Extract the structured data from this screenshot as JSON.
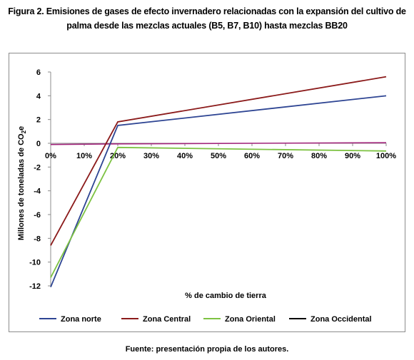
{
  "figure": {
    "title_line1": "Figura 2. Emisiones de gases de efecto invernadero relacionadas con la expansión del cultivo de",
    "title_line2": "palma desde las mezclas actuales (B5, B7, B10) hasta mezclas BB20",
    "source": "Fuente: presentación propia de los autores."
  },
  "chart_data": {
    "type": "line",
    "xlabel": "% de cambio de tierra",
    "ylabel_main": "Millones de toneladas de CO",
    "ylabel_sub": "2",
    "ylabel_tail": "e",
    "x": [
      0,
      20,
      100
    ],
    "x_ticks": [
      "0%",
      "10%",
      "20%",
      "30%",
      "40%",
      "50%",
      "60%",
      "70%",
      "80%",
      "90%",
      "100%"
    ],
    "x_tick_values": [
      0,
      10,
      20,
      30,
      40,
      50,
      60,
      70,
      80,
      90,
      100
    ],
    "y_ticks": [
      "6",
      "4",
      "2",
      "0",
      "-2",
      "-4",
      "-6",
      "-8",
      "-10",
      "-12"
    ],
    "y_tick_values": [
      6,
      4,
      2,
      0,
      -2,
      -4,
      -6,
      -8,
      -10,
      -12
    ],
    "xlim": [
      0,
      100
    ],
    "ylim": [
      -12,
      6
    ],
    "grid": false,
    "legend_position": "bottom",
    "series": [
      {
        "name": "Zona norte",
        "color": "#2e4593",
        "values": [
          -12.1,
          1.5,
          4.0
        ]
      },
      {
        "name": "Zona Central",
        "color": "#8b1a1a",
        "values": [
          -8.6,
          1.8,
          5.6
        ]
      },
      {
        "name": "Zona Oriental",
        "color": "#7dc242",
        "values": [
          -11.3,
          -0.35,
          -0.65
        ]
      },
      {
        "name": "Zona Occidental",
        "color": "#000000",
        "values": [
          -0.1,
          -0.05,
          0.05
        ]
      }
    ],
    "extra_line_color": "#a0237a"
  }
}
